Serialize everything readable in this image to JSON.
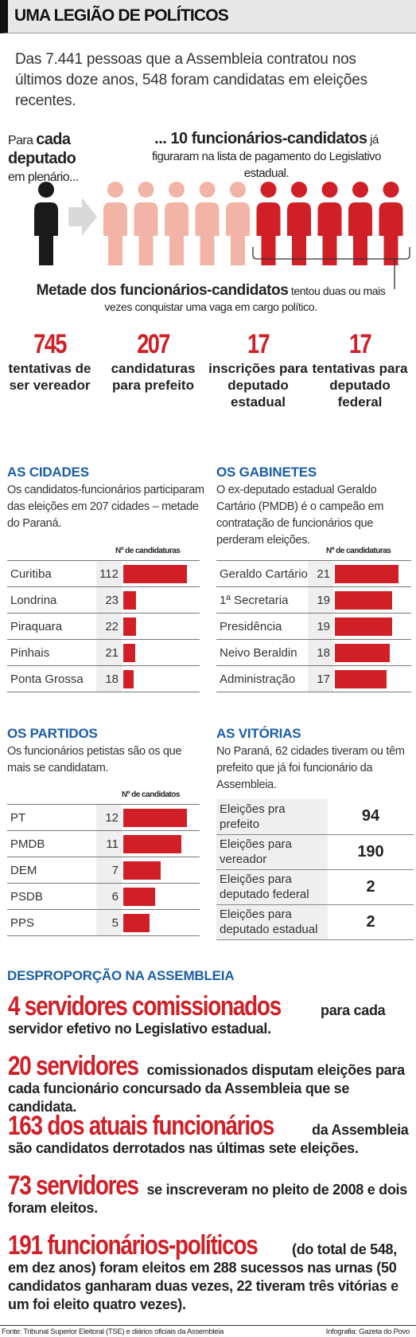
{
  "header": {
    "title": "UMA LEGIÃO DE POLÍTICOS"
  },
  "intro": "Das 7.441 pessoas que a Assembleia contratou nos últimos doze anos, 548 foram candidatas em eleições recentes.",
  "pictogram": {
    "left_prefix": "Para",
    "left_bold": "cada deputado",
    "left_suffix": "em plenário...",
    "right_bold": "... 10 funcionários-candidatos",
    "right_rest": "já figuraram na lista de pagamento do Legislativo estadual.",
    "half_bold": "Metade dos funcionários-candidatos",
    "half_rest": "tentou duas ou mais vezes conquistar uma vaga em cargo político.",
    "colors": {
      "deputy": "#1a1a1a",
      "arrow": "#d9d9d9",
      "light": "#f2b4a6",
      "dark": "#d01f27"
    },
    "light_count": 5,
    "dark_count": 5
  },
  "stats": [
    {
      "number": "745",
      "label": "tentativas de ser vereador"
    },
    {
      "number": "207",
      "label": "candidaturas para prefeito"
    },
    {
      "number": "17",
      "label": "inscrições para deputado estadual"
    },
    {
      "number": "17",
      "label": "tentativas para deputado federal"
    }
  ],
  "chart_data": [
    {
      "type": "bar",
      "title": "AS CIDADES",
      "subtitle": "Os candidatos-funcionários participaram das eleições em 207 cidades – metade do Paraná.",
      "ylabel": "Nº de candidaturas",
      "categories": [
        "Curitiba",
        "Londrina",
        "Piraquara",
        "Pinhais",
        "Ponta Grossa"
      ],
      "values": [
        112,
        23,
        22,
        21,
        18
      ],
      "max": 112
    },
    {
      "type": "bar",
      "title": "OS GABINETES",
      "subtitle": "O ex-deputado estadual Geraldo Cartário (PMDB) é o campeão em contratação de funcionários que perderam eleições.",
      "ylabel": "Nº de candidaturas",
      "categories": [
        "Geraldo Cartário",
        "1ª Secretaria",
        "Presidência",
        "Neivo Beraldin",
        "Administração"
      ],
      "values": [
        21,
        19,
        19,
        18,
        17
      ],
      "max": 21
    },
    {
      "type": "bar",
      "title": "OS PARTIDOS",
      "subtitle": "Os funcionários petistas são os que mais se candidatam.",
      "ylabel": "Nº de candidatos",
      "categories": [
        "PT",
        "PMDB",
        "DEM",
        "PSDB",
        "PPS"
      ],
      "values": [
        12,
        11,
        7,
        6,
        5
      ],
      "max": 12
    },
    {
      "type": "table",
      "title": "AS VITÓRIAS",
      "subtitle": "No Paraná, 62 cidades tiveram ou têm prefeito que já foi funcionário da Assembleia.",
      "categories": [
        "Eleições pra prefeito",
        "Eleições para vereador",
        "Eleições para deputado federal",
        "Eleições para deputado estadual"
      ],
      "values": [
        94,
        190,
        2,
        2
      ]
    }
  ],
  "disproportion": {
    "title": "DESPROPORÇÃO NA ASSEMBLEIA",
    "items": [
      {
        "big": "4 servidores comissionados",
        "rest": "para cada servidor efetivo no Legislativo estadual."
      },
      {
        "big": "20 servidores",
        "rest": "comissionados disputam eleições para cada funcionário concursado da Assembleia que se candidata."
      },
      {
        "big": "163 dos atuais funcionários",
        "rest": "da Assembleia são candidatos derrotados nas últimas sete eleições."
      },
      {
        "big": "73 servidores",
        "rest": "se inscreveram no pleito de 2008 e dois foram eleitos."
      },
      {
        "big": "191 funcionários-políticos",
        "rest": "(do total de 548, em dez anos) foram eleitos em 288 sucessos nas urnas (50 candidatos ganharam duas vezes, 22 tiveram três vitórias e um foi eleito quatro vezes)."
      }
    ]
  },
  "footer": {
    "source": "Fonte: Tribunal Superior Eleitoral (TSE) e diários oficiais da Assembleia",
    "credit": "Infografia: Gazeta do Povo"
  }
}
